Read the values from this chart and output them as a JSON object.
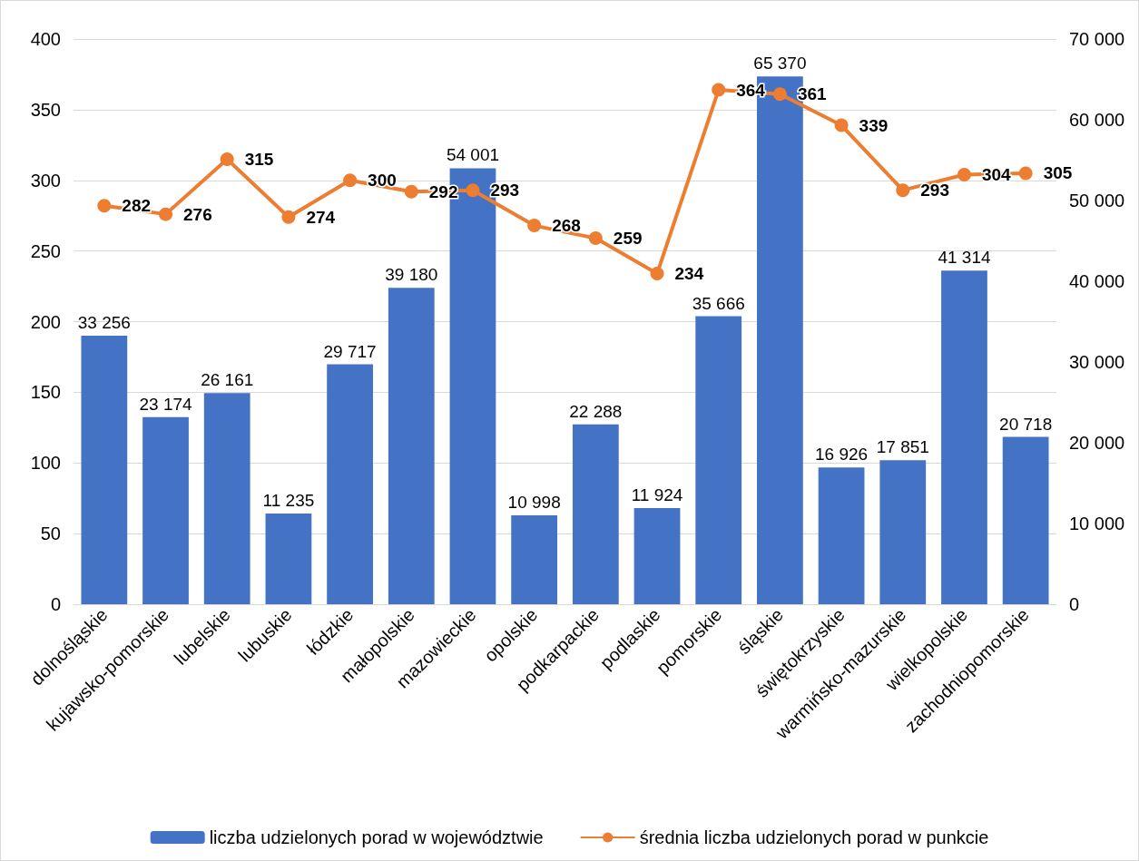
{
  "chart_data": {
    "type": "bar",
    "categories": [
      "dolnośląskie",
      "kujawsko-pomorskie",
      "lubelskie",
      "lubuskie",
      "łódzkie",
      "małopolskie",
      "mazowieckie",
      "opolskie",
      "podkarpackie",
      "podlaskie",
      "pomorskie",
      "śląskie",
      "świętokrzyskie",
      "warmińsko-mazurskie",
      "wielkopolskie",
      "zachodniopomorskie"
    ],
    "series": [
      {
        "name": "liczba udzielonych porad w województwie",
        "axis": "y2",
        "color": "#4472c4",
        "values": [
          33256,
          23174,
          26161,
          11235,
          29717,
          39180,
          54001,
          10998,
          22288,
          11924,
          35666,
          65370,
          16926,
          17851,
          41314,
          20718
        ],
        "value_labels": [
          "33 256",
          "23 174",
          "26 161",
          "11 235",
          "29 717",
          "39 180",
          "54 001",
          "10 998",
          "22 288",
          "11 924",
          "35 666",
          "65 370",
          "16 926",
          "17 851",
          "41 314",
          "20 718"
        ]
      },
      {
        "name": "średnia liczba udzielonych porad w punkcie",
        "type": "line",
        "axis": "y",
        "color": "#ed7d31",
        "marker": "circle",
        "values": [
          282,
          276,
          315,
          274,
          300,
          292,
          293,
          268,
          259,
          234,
          364,
          361,
          339,
          293,
          304,
          305
        ],
        "value_labels": [
          "282",
          "276",
          "315",
          "274",
          "300",
          "292",
          "293",
          "268",
          "259",
          "234",
          "364",
          "361",
          "339",
          "293",
          "304",
          "305"
        ]
      }
    ],
    "ylim": [
      0,
      400
    ],
    "yticks": [
      0,
      50,
      100,
      150,
      200,
      250,
      300,
      350,
      400
    ],
    "y2lim": [
      0,
      70000
    ],
    "y2ticks": [
      0,
      {
        "value": 10000,
        "label": "10 000"
      },
      {
        "value": 20000,
        "label": "20 000"
      },
      {
        "value": 30000,
        "label": "30 000"
      },
      {
        "value": 40000,
        "label": "40 000"
      },
      {
        "value": 50000,
        "label": "50 000"
      },
      {
        "value": 60000,
        "label": "60 000"
      },
      {
        "value": 70000,
        "label": "70 000"
      }
    ],
    "grid": "y",
    "legend": "bottom"
  }
}
